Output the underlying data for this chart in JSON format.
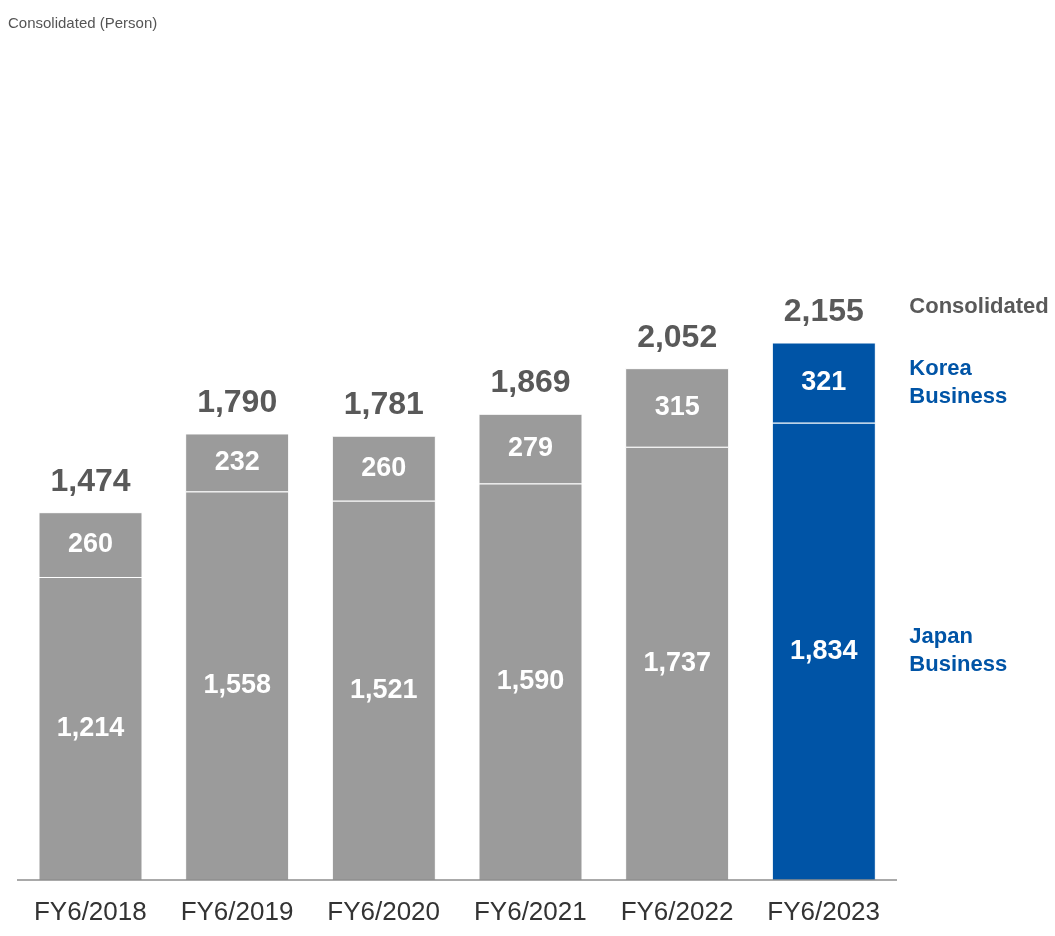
{
  "chart_data": {
    "type": "bar",
    "subtitle": "Consolidated (Person)",
    "categories": [
      "FY6/2018",
      "FY6/2019",
      "FY6/2020",
      "FY6/2021",
      "FY6/2022",
      "FY6/2023"
    ],
    "stacked": true,
    "legend": false,
    "series": [
      {
        "name": "Japan Business",
        "values": [
          1214,
          1558,
          1521,
          1590,
          1737,
          1834
        ],
        "value_labels": [
          "1,214",
          "1,558",
          "1,521",
          "1,590",
          "1,737",
          "1,834"
        ],
        "colors": [
          "#9b9b9b",
          "#9b9b9b",
          "#9b9b9b",
          "#9b9b9b",
          "#9b9b9b",
          "#0054a6"
        ]
      },
      {
        "name": "Korea Business",
        "values": [
          260,
          232,
          260,
          279,
          315,
          321
        ],
        "value_labels": [
          "260",
          "232",
          "260",
          "279",
          "315",
          "321"
        ],
        "colors": [
          "#9b9b9b",
          "#9b9b9b",
          "#9b9b9b",
          "#9b9b9b",
          "#9b9b9b",
          "#0054a6"
        ]
      }
    ],
    "totals": [
      "1,474",
      "1,790",
      "1,781",
      "1,869",
      "2,052",
      "2,155"
    ],
    "annotations": [
      "Consolidated"
    ]
  }
}
